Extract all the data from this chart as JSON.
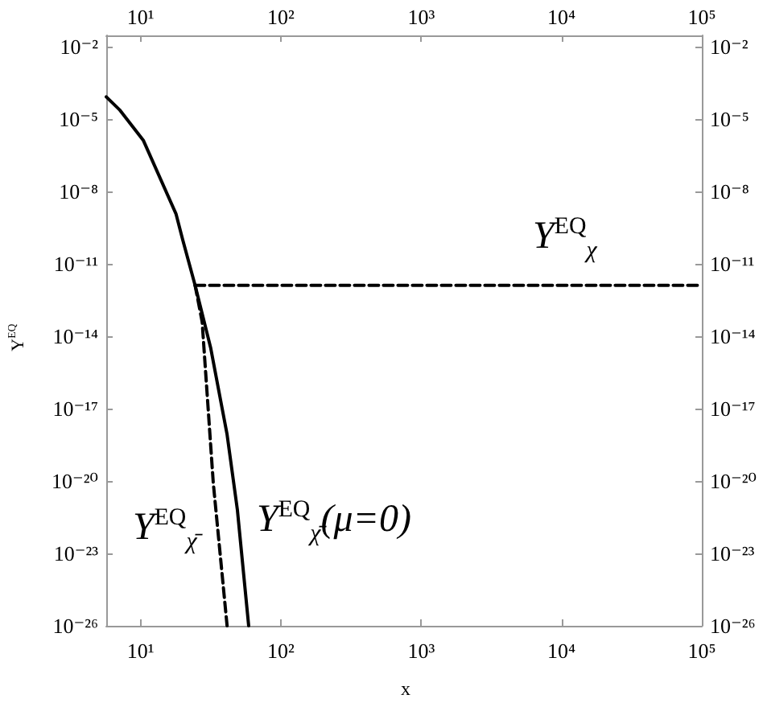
{
  "chart_data": {
    "type": "line",
    "xlabel": "x",
    "ylabel": "Y$^{EQ}$",
    "log": "xy",
    "grid": false,
    "marker": "none",
    "xlim": [
      5.7,
      100000
    ],
    "xticks": [
      {
        "value": 10,
        "label": "10¹"
      },
      {
        "value": 100,
        "label": "10²"
      },
      {
        "value": 1000,
        "label": "10³"
      },
      {
        "value": 10000,
        "label": "10⁴"
      },
      {
        "value": 100000,
        "label": "10⁵"
      }
    ],
    "ylim": [
      1e-26,
      0.03
    ],
    "yticks": [
      {
        "value": 1e-26,
        "label": "10⁻²⁶"
      },
      {
        "value": 1e-23,
        "label": "10⁻²³"
      },
      {
        "value": 1e-20,
        "label": "10⁻²⁰"
      },
      {
        "value": 1e-17,
        "label": "10⁻¹⁷"
      },
      {
        "value": 1e-14,
        "label": "10⁻¹⁴"
      },
      {
        "value": 1e-11,
        "label": "10⁻¹¹"
      },
      {
        "value": 1e-08,
        "label": "10⁻⁸"
      },
      {
        "value": 1e-05,
        "label": "10⁻⁵"
      },
      {
        "value": 0.01,
        "label": "10⁻²"
      }
    ],
    "series": [
      {
        "name": "Y$^{EQ}$$_{χ̄}$(μ=0)",
        "color": "#000000",
        "line_style": "solid",
        "x": [
          5.7,
          7.08,
          10.5,
          17.9,
          20,
          24.5,
          31.6,
          41.4,
          49,
          59
        ],
        "values": [
          8.5e-05,
          2.5e-05,
          1.3e-06,
          1.2e-09,
          1e-10,
          1.3e-12,
          3.4e-15,
          8.5e-19,
          6.6e-22,
          1e-26
        ]
      },
      {
        "name": "Y$^{EQ}$$_{χ̄}$",
        "color": "#000000",
        "line_style": "dashed",
        "x": [
          24.5,
          27.5,
          33,
          41.4
        ],
        "values": [
          1.3e-12,
          4e-14,
          8.5e-21,
          1e-26
        ]
      },
      {
        "name": "Y$^{EQ}$$_{χ}$",
        "color": "#000000",
        "line_style": "dashed",
        "x": [
          24.5,
          100000
        ],
        "values": [
          1.3e-12,
          1.3e-12
        ]
      }
    ]
  }
}
